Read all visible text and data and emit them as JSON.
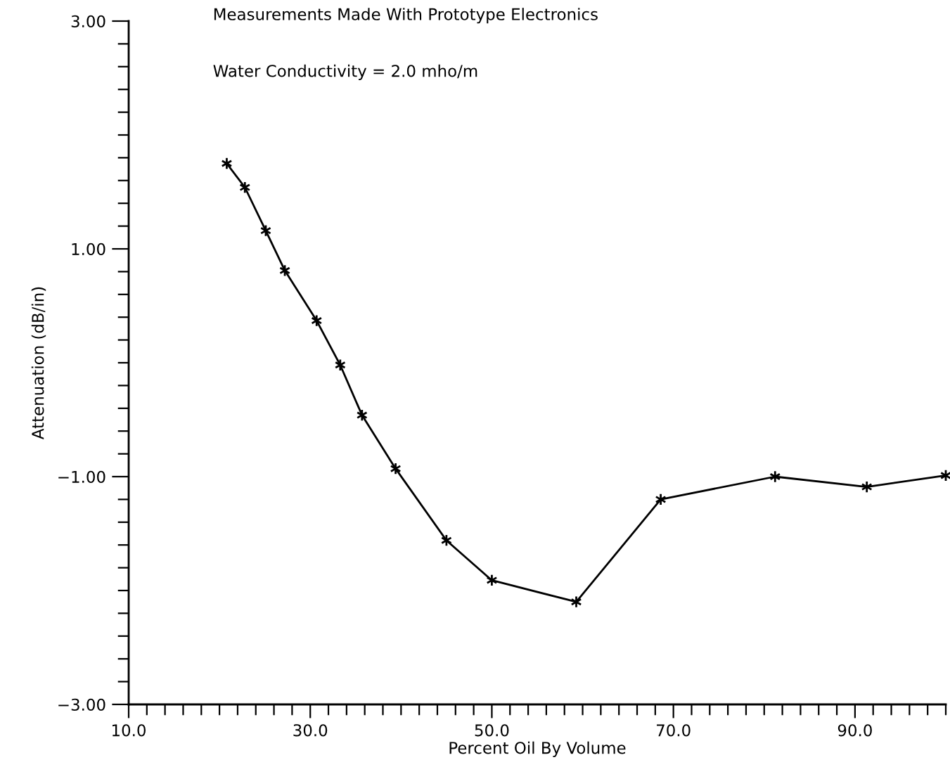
{
  "chart_data": {
    "type": "line",
    "xlabel": "Percent Oil By Volume",
    "ylabel": "Attenuation (dB/in)",
    "annotations": [
      "Measurements Made With Prototype Electronics",
      "Water Conductivity = 2.0 mho/m"
    ],
    "x": [
      20.8,
      22.8,
      25.1,
      27.2,
      30.7,
      33.3,
      35.7,
      39.4,
      45.0,
      50.0,
      59.3,
      68.6,
      81.2,
      91.3,
      100.0
    ],
    "series": [
      {
        "color": "#000000",
        "values": [
          1.75,
          1.54,
          1.16,
          0.81,
          0.37,
          -0.02,
          -0.46,
          -0.93,
          -1.56,
          -1.91,
          -2.1,
          -1.2,
          -1.0,
          -1.09,
          -0.99
        ]
      }
    ],
    "marker": "cross",
    "line_style": "solid",
    "xlim": [
      10,
      100
    ],
    "ylim": [
      -3,
      3
    ],
    "xticks": [
      {
        "value": 10,
        "label": "10.0"
      },
      {
        "value": 12,
        "label": null
      },
      {
        "value": 14,
        "label": null
      },
      {
        "value": 16,
        "label": null
      },
      {
        "value": 18,
        "label": null
      },
      {
        "value": 20,
        "label": null
      },
      {
        "value": 22,
        "label": null
      },
      {
        "value": 24,
        "label": null
      },
      {
        "value": 26,
        "label": null
      },
      {
        "value": 28,
        "label": null
      },
      {
        "value": 30,
        "label": "30.0"
      },
      {
        "value": 32,
        "label": null
      },
      {
        "value": 34,
        "label": null
      },
      {
        "value": 36,
        "label": null
      },
      {
        "value": 38,
        "label": null
      },
      {
        "value": 40,
        "label": null
      },
      {
        "value": 42,
        "label": null
      },
      {
        "value": 44,
        "label": null
      },
      {
        "value": 46,
        "label": null
      },
      {
        "value": 48,
        "label": null
      },
      {
        "value": 50,
        "label": "50.0"
      },
      {
        "value": 52,
        "label": null
      },
      {
        "value": 54,
        "label": null
      },
      {
        "value": 56,
        "label": null
      },
      {
        "value": 58,
        "label": null
      },
      {
        "value": 60,
        "label": null
      },
      {
        "value": 62,
        "label": null
      },
      {
        "value": 64,
        "label": null
      },
      {
        "value": 66,
        "label": null
      },
      {
        "value": 68,
        "label": null
      },
      {
        "value": 70,
        "label": "70.0"
      },
      {
        "value": 72,
        "label": null
      },
      {
        "value": 74,
        "label": null
      },
      {
        "value": 76,
        "label": null
      },
      {
        "value": 78,
        "label": null
      },
      {
        "value": 80,
        "label": null
      },
      {
        "value": 82,
        "label": null
      },
      {
        "value": 84,
        "label": null
      },
      {
        "value": 86,
        "label": null
      },
      {
        "value": 88,
        "label": null
      },
      {
        "value": 90,
        "label": "90.0"
      },
      {
        "value": 92,
        "label": null
      },
      {
        "value": 94,
        "label": null
      },
      {
        "value": 96,
        "label": null
      },
      {
        "value": 98,
        "label": null
      },
      {
        "value": 100,
        "label": null
      }
    ],
    "yticks": [
      {
        "value": -3,
        "label": "−3.00"
      },
      {
        "value": -2.8,
        "label": null
      },
      {
        "value": -2.6,
        "label": null
      },
      {
        "value": -2.4,
        "label": null
      },
      {
        "value": -2.2,
        "label": null
      },
      {
        "value": -2,
        "label": null
      },
      {
        "value": -1.8,
        "label": null
      },
      {
        "value": -1.6,
        "label": null
      },
      {
        "value": -1.4,
        "label": null
      },
      {
        "value": -1.2,
        "label": null
      },
      {
        "value": -1,
        "label": "−1.00"
      },
      {
        "value": -0.8,
        "label": null
      },
      {
        "value": -0.6,
        "label": null
      },
      {
        "value": -0.4,
        "label": null
      },
      {
        "value": -0.2,
        "label": null
      },
      {
        "value": 0,
        "label": null
      },
      {
        "value": 0.2,
        "label": null
      },
      {
        "value": 0.4,
        "label": null
      },
      {
        "value": 0.6,
        "label": null
      },
      {
        "value": 0.8,
        "label": null
      },
      {
        "value": 1,
        "label": "1.00"
      },
      {
        "value": 1.2,
        "label": null
      },
      {
        "value": 1.4,
        "label": null
      },
      {
        "value": 1.6,
        "label": null
      },
      {
        "value": 1.8,
        "label": null
      },
      {
        "value": 2,
        "label": null
      },
      {
        "value": 2.2,
        "label": null
      },
      {
        "value": 2.4,
        "label": null
      },
      {
        "value": 2.6,
        "label": null
      },
      {
        "value": 2.8,
        "label": null
      },
      {
        "value": 3,
        "label": "3.00"
      }
    ]
  }
}
